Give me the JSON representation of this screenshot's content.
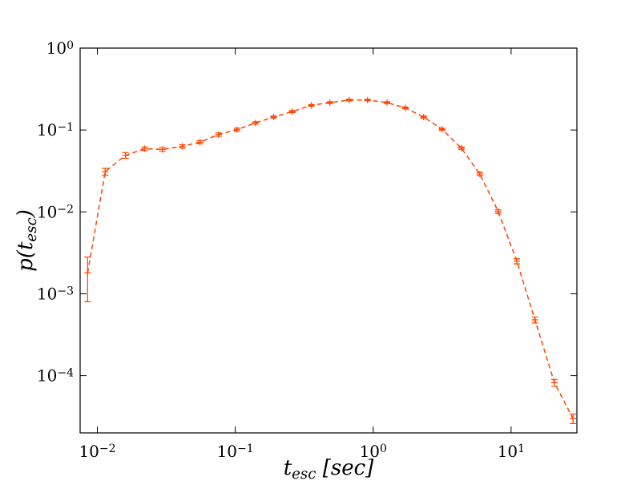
{
  "chart_data": {
    "type": "line",
    "xlabel": "t_esc [sec]",
    "ylabel": "p(t_esc)",
    "xscale": "log",
    "yscale": "log",
    "xlim": [
      0.0075,
      30
    ],
    "ylim": [
      2e-05,
      1
    ],
    "xticks": [
      {
        "value": 0.01,
        "label": "10^−2"
      },
      {
        "value": 0.1,
        "label": "10^−1"
      },
      {
        "value": 1,
        "label": "10^0"
      },
      {
        "value": 10,
        "label": "10^1"
      }
    ],
    "yticks": [
      {
        "value": 0.0001,
        "label": "10^−4"
      },
      {
        "value": 0.001,
        "label": "10^−3"
      },
      {
        "value": 0.01,
        "label": "10^−2"
      },
      {
        "value": 0.1,
        "label": "10^−1"
      },
      {
        "value": 1,
        "label": "10^0"
      }
    ],
    "series": [
      {
        "color": "#ff4500",
        "linestyle": "dashed",
        "x": [
          0.0085,
          0.0114,
          0.016,
          0.022,
          0.0296,
          0.0413,
          0.0555,
          0.0755,
          0.103,
          0.14,
          0.19,
          0.259,
          0.356,
          0.485,
          0.67,
          0.91,
          1.26,
          1.71,
          2.32,
          3.16,
          4.36,
          5.93,
          8.07,
          11.0,
          14.9,
          20.6,
          28.1
        ],
        "values": [
          0.0018,
          0.031,
          0.049,
          0.059,
          0.058,
          0.063,
          0.071,
          0.088,
          0.101,
          0.122,
          0.144,
          0.168,
          0.2,
          0.216,
          0.232,
          0.232,
          0.216,
          0.186,
          0.144,
          0.102,
          0.06,
          0.029,
          0.0101,
          0.0025,
          0.00048,
          8.2e-05,
          3e-05
        ],
        "errors": [
          0.001,
          0.003,
          0.004,
          0.003,
          0.003,
          0.003,
          0.003,
          0.004,
          0.004,
          0.004,
          0.004,
          0.005,
          0.005,
          0.005,
          0.005,
          0.005,
          0.005,
          0.005,
          0.004,
          0.003,
          0.002,
          0.0012,
          0.0005,
          0.00018,
          4e-05,
          8e-06,
          4e-06
        ]
      }
    ]
  }
}
